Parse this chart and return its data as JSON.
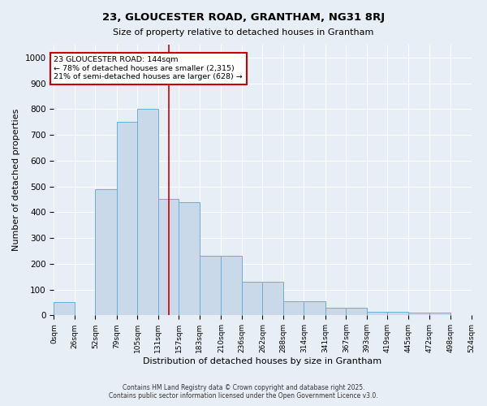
{
  "title": "23, GLOUCESTER ROAD, GRANTHAM, NG31 8RJ",
  "subtitle": "Size of property relative to detached houses in Grantham",
  "xlabel": "Distribution of detached houses by size in Grantham",
  "ylabel": "Number of detached properties",
  "bin_edges": [
    0,
    26,
    52,
    79,
    105,
    131,
    157,
    183,
    210,
    236,
    262,
    288,
    314,
    341,
    367,
    393,
    419,
    445,
    472,
    498,
    524
  ],
  "bar_heights": [
    50,
    0,
    490,
    750,
    800,
    450,
    440,
    230,
    230,
    130,
    130,
    55,
    55,
    30,
    30,
    15,
    15,
    10,
    10,
    0
  ],
  "bar_color": "#c9d9ea",
  "bar_edgecolor": "#6baed6",
  "property_size": 144,
  "vline_color": "#cc0000",
  "annotation_line1": "23 GLOUCESTER ROAD: 144sqm",
  "annotation_line2": "← 78% of detached houses are smaller (2,315)",
  "annotation_line3": "21% of semi-detached houses are larger (628) →",
  "annotation_box_color": "#cc0000",
  "annotation_bg": "#ffffff",
  "ylim": [
    0,
    1050
  ],
  "yticks": [
    0,
    100,
    200,
    300,
    400,
    500,
    600,
    700,
    800,
    900,
    1000
  ],
  "background_color": "#e8eef5",
  "plot_bg": "#e8eef5",
  "footer1": "Contains HM Land Registry data © Crown copyright and database right 2025.",
  "footer2": "Contains public sector information licensed under the Open Government Licence v3.0."
}
